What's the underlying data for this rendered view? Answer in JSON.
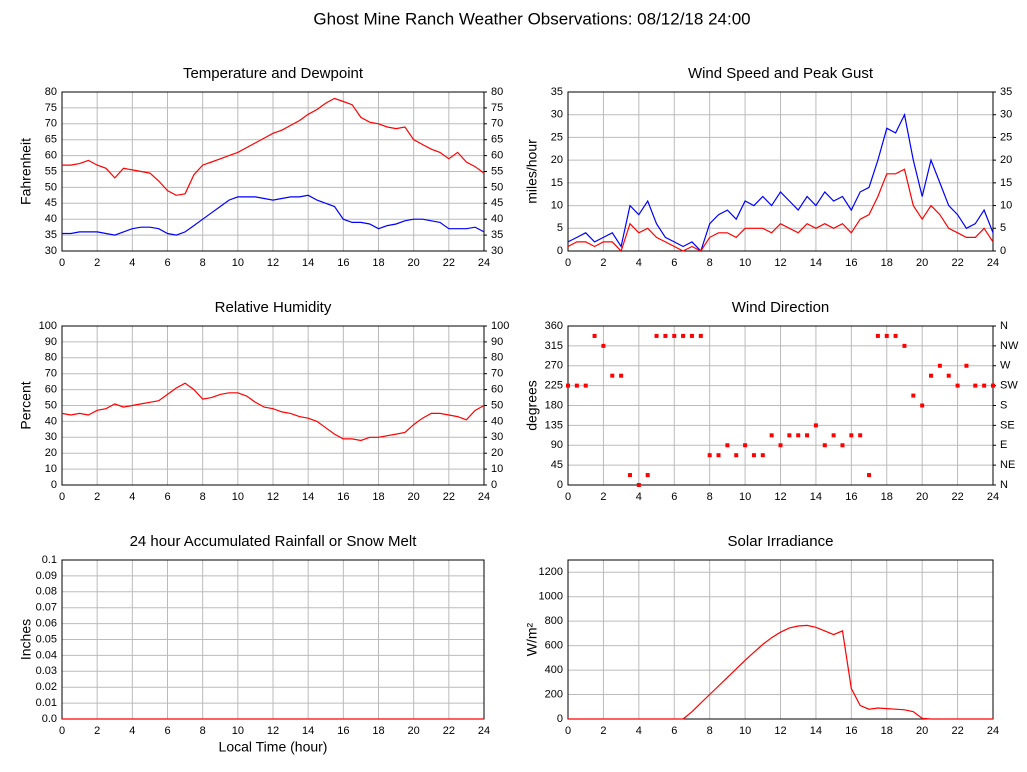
{
  "title": "Ghost Mine Ranch Weather Observations: 08/12/18 24:00",
  "chart_data": [
    {
      "type": "line",
      "title": "Temperature and Dewpoint",
      "ylabel": "Fahrenheit",
      "x": [
        0,
        0.5,
        1,
        1.5,
        2,
        2.5,
        3,
        3.5,
        4,
        4.5,
        5,
        5.5,
        6,
        6.5,
        7,
        7.5,
        8,
        8.5,
        9,
        9.5,
        10,
        10.5,
        11,
        11.5,
        12,
        12.5,
        13,
        13.5,
        14,
        14.5,
        15,
        15.5,
        16,
        16.5,
        17,
        17.5,
        18,
        18.5,
        19,
        19.5,
        20,
        20.5,
        21,
        21.5,
        22,
        22.5,
        23,
        23.5,
        24
      ],
      "series": [
        {
          "color": "#ff0000",
          "values": [
            57,
            57,
            57.5,
            58.5,
            57,
            56,
            53,
            56,
            55.5,
            55,
            54.5,
            52,
            49,
            47.5,
            48,
            54,
            57,
            58,
            59,
            60,
            61,
            62.5,
            64,
            65.5,
            67,
            68,
            69.5,
            71,
            73,
            74.5,
            76.5,
            78,
            77,
            76,
            72,
            70.5,
            70,
            69,
            68.5,
            69,
            65,
            63.5,
            62,
            61,
            59,
            61,
            58,
            56.5,
            54.5
          ]
        },
        {
          "color": "#0000ff",
          "values": [
            35.5,
            35.5,
            36,
            36,
            36,
            35.5,
            35,
            36,
            37,
            37.5,
            37.5,
            37,
            35.5,
            35,
            36,
            38,
            40,
            42,
            44,
            46,
            47,
            47,
            47,
            46.5,
            46,
            46.5,
            47,
            47,
            47.5,
            46,
            45,
            44,
            40,
            39,
            39,
            38.5,
            37,
            38,
            38.5,
            39.5,
            40,
            40,
            39.5,
            39,
            37,
            37,
            37,
            37.5,
            36
          ]
        }
      ],
      "xlim": [
        0,
        24
      ],
      "xticks": [
        0,
        2,
        4,
        6,
        8,
        10,
        12,
        14,
        16,
        18,
        20,
        22,
        24
      ],
      "ylim": [
        30,
        80
      ],
      "yticks": [
        30,
        35,
        40,
        45,
        50,
        55,
        60,
        65,
        70,
        75,
        80
      ],
      "y2lim": [
        30,
        80
      ],
      "y2ticks": [
        30,
        35,
        40,
        45,
        50,
        55,
        60,
        65,
        70,
        75,
        80
      ],
      "grid": true
    },
    {
      "type": "line",
      "title": "Wind Speed and Peak Gust",
      "ylabel": "miles/hour",
      "x": [
        0,
        0.5,
        1,
        1.5,
        2,
        2.5,
        3,
        3.5,
        4,
        4.5,
        5,
        5.5,
        6,
        6.5,
        7,
        7.5,
        8,
        8.5,
        9,
        9.5,
        10,
        10.5,
        11,
        11.5,
        12,
        12.5,
        13,
        13.5,
        14,
        14.5,
        15,
        15.5,
        16,
        16.5,
        17,
        17.5,
        18,
        18.5,
        19,
        19.5,
        20,
        20.5,
        21,
        21.5,
        22,
        22.5,
        23,
        23.5,
        24
      ],
      "series": [
        {
          "color": "#0000ff",
          "values": [
            2,
            3,
            4,
            2,
            3,
            4,
            1,
            10,
            8,
            11,
            6,
            3,
            2,
            1,
            2,
            0,
            6,
            8,
            9,
            7,
            11,
            10,
            12,
            10,
            13,
            11,
            9,
            12,
            10,
            13,
            11,
            12,
            9,
            13,
            14,
            20,
            27,
            26,
            30,
            20,
            12,
            20,
            15,
            10,
            8,
            5,
            6,
            9,
            4
          ]
        },
        {
          "color": "#ff0000",
          "values": [
            1,
            2,
            2,
            1,
            2,
            2,
            0,
            6,
            4,
            5,
            3,
            2,
            1,
            0,
            1,
            0,
            3,
            4,
            4,
            3,
            5,
            5,
            5,
            4,
            6,
            5,
            4,
            6,
            5,
            6,
            5,
            6,
            4,
            7,
            8,
            12,
            17,
            17,
            18,
            10,
            7,
            10,
            8,
            5,
            4,
            3,
            3,
            5,
            2
          ]
        }
      ],
      "xlim": [
        0,
        24
      ],
      "xticks": [
        0,
        2,
        4,
        6,
        8,
        10,
        12,
        14,
        16,
        18,
        20,
        22,
        24
      ],
      "ylim": [
        0,
        35
      ],
      "yticks": [
        0,
        5,
        10,
        15,
        20,
        25,
        30,
        35
      ],
      "y2lim": [
        0,
        35
      ],
      "y2ticks": [
        0,
        5,
        10,
        15,
        20,
        25,
        30,
        35
      ],
      "grid": true
    },
    {
      "type": "line",
      "title": "Relative Humidity",
      "ylabel": "Percent",
      "x": [
        0,
        0.5,
        1,
        1.5,
        2,
        2.5,
        3,
        3.5,
        4,
        4.5,
        5,
        5.5,
        6,
        6.5,
        7,
        7.5,
        8,
        8.5,
        9,
        9.5,
        10,
        10.5,
        11,
        11.5,
        12,
        12.5,
        13,
        13.5,
        14,
        14.5,
        15,
        15.5,
        16,
        16.5,
        17,
        17.5,
        18,
        18.5,
        19,
        19.5,
        20,
        20.5,
        21,
        21.5,
        22,
        22.5,
        23,
        23.5,
        24
      ],
      "series": [
        {
          "color": "#ff0000",
          "values": [
            45,
            44,
            45,
            44,
            47,
            48,
            51,
            49,
            50,
            51,
            52,
            53,
            57,
            61,
            64,
            60,
            54,
            55,
            57,
            58,
            58,
            56,
            52,
            49,
            48,
            46,
            45,
            43,
            42,
            40,
            36,
            32,
            29,
            29,
            28,
            30,
            30,
            31,
            32,
            33,
            38,
            42,
            45,
            45,
            44,
            43,
            41,
            47,
            50
          ]
        }
      ],
      "xlim": [
        0,
        24
      ],
      "xticks": [
        0,
        2,
        4,
        6,
        8,
        10,
        12,
        14,
        16,
        18,
        20,
        22,
        24
      ],
      "ylim": [
        0,
        100
      ],
      "yticks": [
        0,
        10,
        20,
        30,
        40,
        50,
        60,
        70,
        80,
        90,
        100
      ],
      "y2lim": [
        0,
        100
      ],
      "y2ticks": [
        0,
        10,
        20,
        30,
        40,
        50,
        60,
        70,
        80,
        90,
        100
      ],
      "grid": true
    },
    {
      "type": "scatter",
      "title": "Wind Direction",
      "ylabel": "degrees",
      "x": [
        0,
        0.5,
        1,
        1.5,
        2,
        2.5,
        3,
        3.5,
        4,
        4.5,
        5,
        5.5,
        6,
        6.5,
        7,
        7.5,
        8,
        8.5,
        9,
        9.5,
        10,
        10.5,
        11,
        11.5,
        12,
        12.5,
        13,
        13.5,
        14,
        14.5,
        15,
        15.5,
        16,
        16.5,
        17,
        17.5,
        18,
        18.5,
        19,
        19.5,
        20,
        20.5,
        21,
        21.5,
        22,
        22.5,
        23,
        23.5,
        24
      ],
      "series": [
        {
          "color": "#ff0000",
          "values": [
            225,
            225,
            225,
            337.5,
            315,
            247.5,
            247.5,
            22.5,
            0,
            22.5,
            337.5,
            337.5,
            337.5,
            337.5,
            337.5,
            337.5,
            67.5,
            67.5,
            90,
            67.5,
            90,
            67.5,
            67.5,
            112.5,
            90,
            112.5,
            112.5,
            112.5,
            135,
            90,
            112.5,
            90,
            112.5,
            112.5,
            22.5,
            337.5,
            337.5,
            337.5,
            315,
            202.5,
            180,
            247.5,
            270,
            247.5,
            225,
            270,
            225,
            225,
            225
          ]
        }
      ],
      "xlim": [
        0,
        24
      ],
      "xticks": [
        0,
        2,
        4,
        6,
        8,
        10,
        12,
        14,
        16,
        18,
        20,
        22,
        24
      ],
      "ylim": [
        0,
        360
      ],
      "yticks": [
        0,
        45,
        90,
        135,
        180,
        225,
        270,
        315,
        360
      ],
      "y2lim": [
        0,
        360
      ],
      "y2ticks": [
        {
          "value": 0,
          "label": "N"
        },
        {
          "value": 45,
          "label": "NE"
        },
        {
          "value": 90,
          "label": "E"
        },
        {
          "value": 135,
          "label": "SE"
        },
        {
          "value": 180,
          "label": "S"
        },
        {
          "value": 225,
          "label": "SW"
        },
        {
          "value": 270,
          "label": "W"
        },
        {
          "value": 315,
          "label": "NW"
        },
        {
          "value": 360,
          "label": "N"
        }
      ],
      "grid": true
    },
    {
      "type": "line",
      "title": "24 hour Accumulated Rainfall or Snow Melt",
      "ylabel": "Inches",
      "xlabel": "Local Time (hour)",
      "x": [
        0,
        0.5,
        1,
        1.5,
        2,
        2.5,
        3,
        3.5,
        4,
        4.5,
        5,
        5.5,
        6,
        6.5,
        7,
        7.5,
        8,
        8.5,
        9,
        9.5,
        10,
        10.5,
        11,
        11.5,
        12,
        12.5,
        13,
        13.5,
        14,
        14.5,
        15,
        15.5,
        16,
        16.5,
        17,
        17.5,
        18,
        18.5,
        19,
        19.5,
        20,
        20.5,
        21,
        21.5,
        22,
        22.5,
        23,
        23.5,
        24
      ],
      "series": [
        {
          "color": "#ff0000",
          "values": [
            0,
            0,
            0,
            0,
            0,
            0,
            0,
            0,
            0,
            0,
            0,
            0,
            0,
            0,
            0,
            0,
            0,
            0,
            0,
            0,
            0,
            0,
            0,
            0,
            0,
            0,
            0,
            0,
            0,
            0,
            0,
            0,
            0,
            0,
            0,
            0,
            0,
            0,
            0,
            0,
            0,
            0,
            0,
            0,
            0,
            0,
            0,
            0,
            0
          ]
        }
      ],
      "xlim": [
        0,
        24
      ],
      "xticks": [
        0,
        2,
        4,
        6,
        8,
        10,
        12,
        14,
        16,
        18,
        20,
        22,
        24
      ],
      "ylim": [
        0,
        0.1
      ],
      "yticks": [
        {
          "value": 0,
          "label": "0.0"
        },
        0.01,
        0.02,
        0.03,
        0.04,
        0.05,
        0.06,
        0.07,
        0.08,
        0.09,
        0.1
      ],
      "grid": true
    },
    {
      "type": "line",
      "title": "Solar Irradiance",
      "ylabel": "W/m²",
      "x": [
        0,
        0.5,
        1,
        1.5,
        2,
        2.5,
        3,
        3.5,
        4,
        4.5,
        5,
        5.5,
        6,
        6.5,
        7,
        7.5,
        8,
        8.5,
        9,
        9.5,
        10,
        10.5,
        11,
        11.5,
        12,
        12.5,
        13,
        13.5,
        14,
        14.5,
        15,
        15.5,
        16,
        16.5,
        17,
        17.5,
        18,
        18.5,
        19,
        19.5,
        20,
        20.5,
        21,
        21.5,
        22,
        22.5,
        23,
        23.5,
        24
      ],
      "series": [
        {
          "color": "#ff0000",
          "values": [
            0,
            0,
            0,
            0,
            0,
            0,
            0,
            0,
            0,
            0,
            0,
            0,
            0,
            0,
            60,
            130,
            200,
            270,
            340,
            410,
            480,
            545,
            610,
            665,
            710,
            745,
            760,
            765,
            750,
            720,
            690,
            720,
            250,
            110,
            80,
            90,
            85,
            80,
            75,
            60,
            5,
            0,
            0,
            0,
            0,
            0,
            0,
            0,
            0
          ]
        }
      ],
      "xlim": [
        0,
        24
      ],
      "xticks": [
        0,
        2,
        4,
        6,
        8,
        10,
        12,
        14,
        16,
        18,
        20,
        22,
        24
      ],
      "ylim": [
        0,
        1300
      ],
      "yticks": [
        0,
        200,
        400,
        600,
        800,
        1000,
        1200
      ],
      "grid": true
    }
  ]
}
